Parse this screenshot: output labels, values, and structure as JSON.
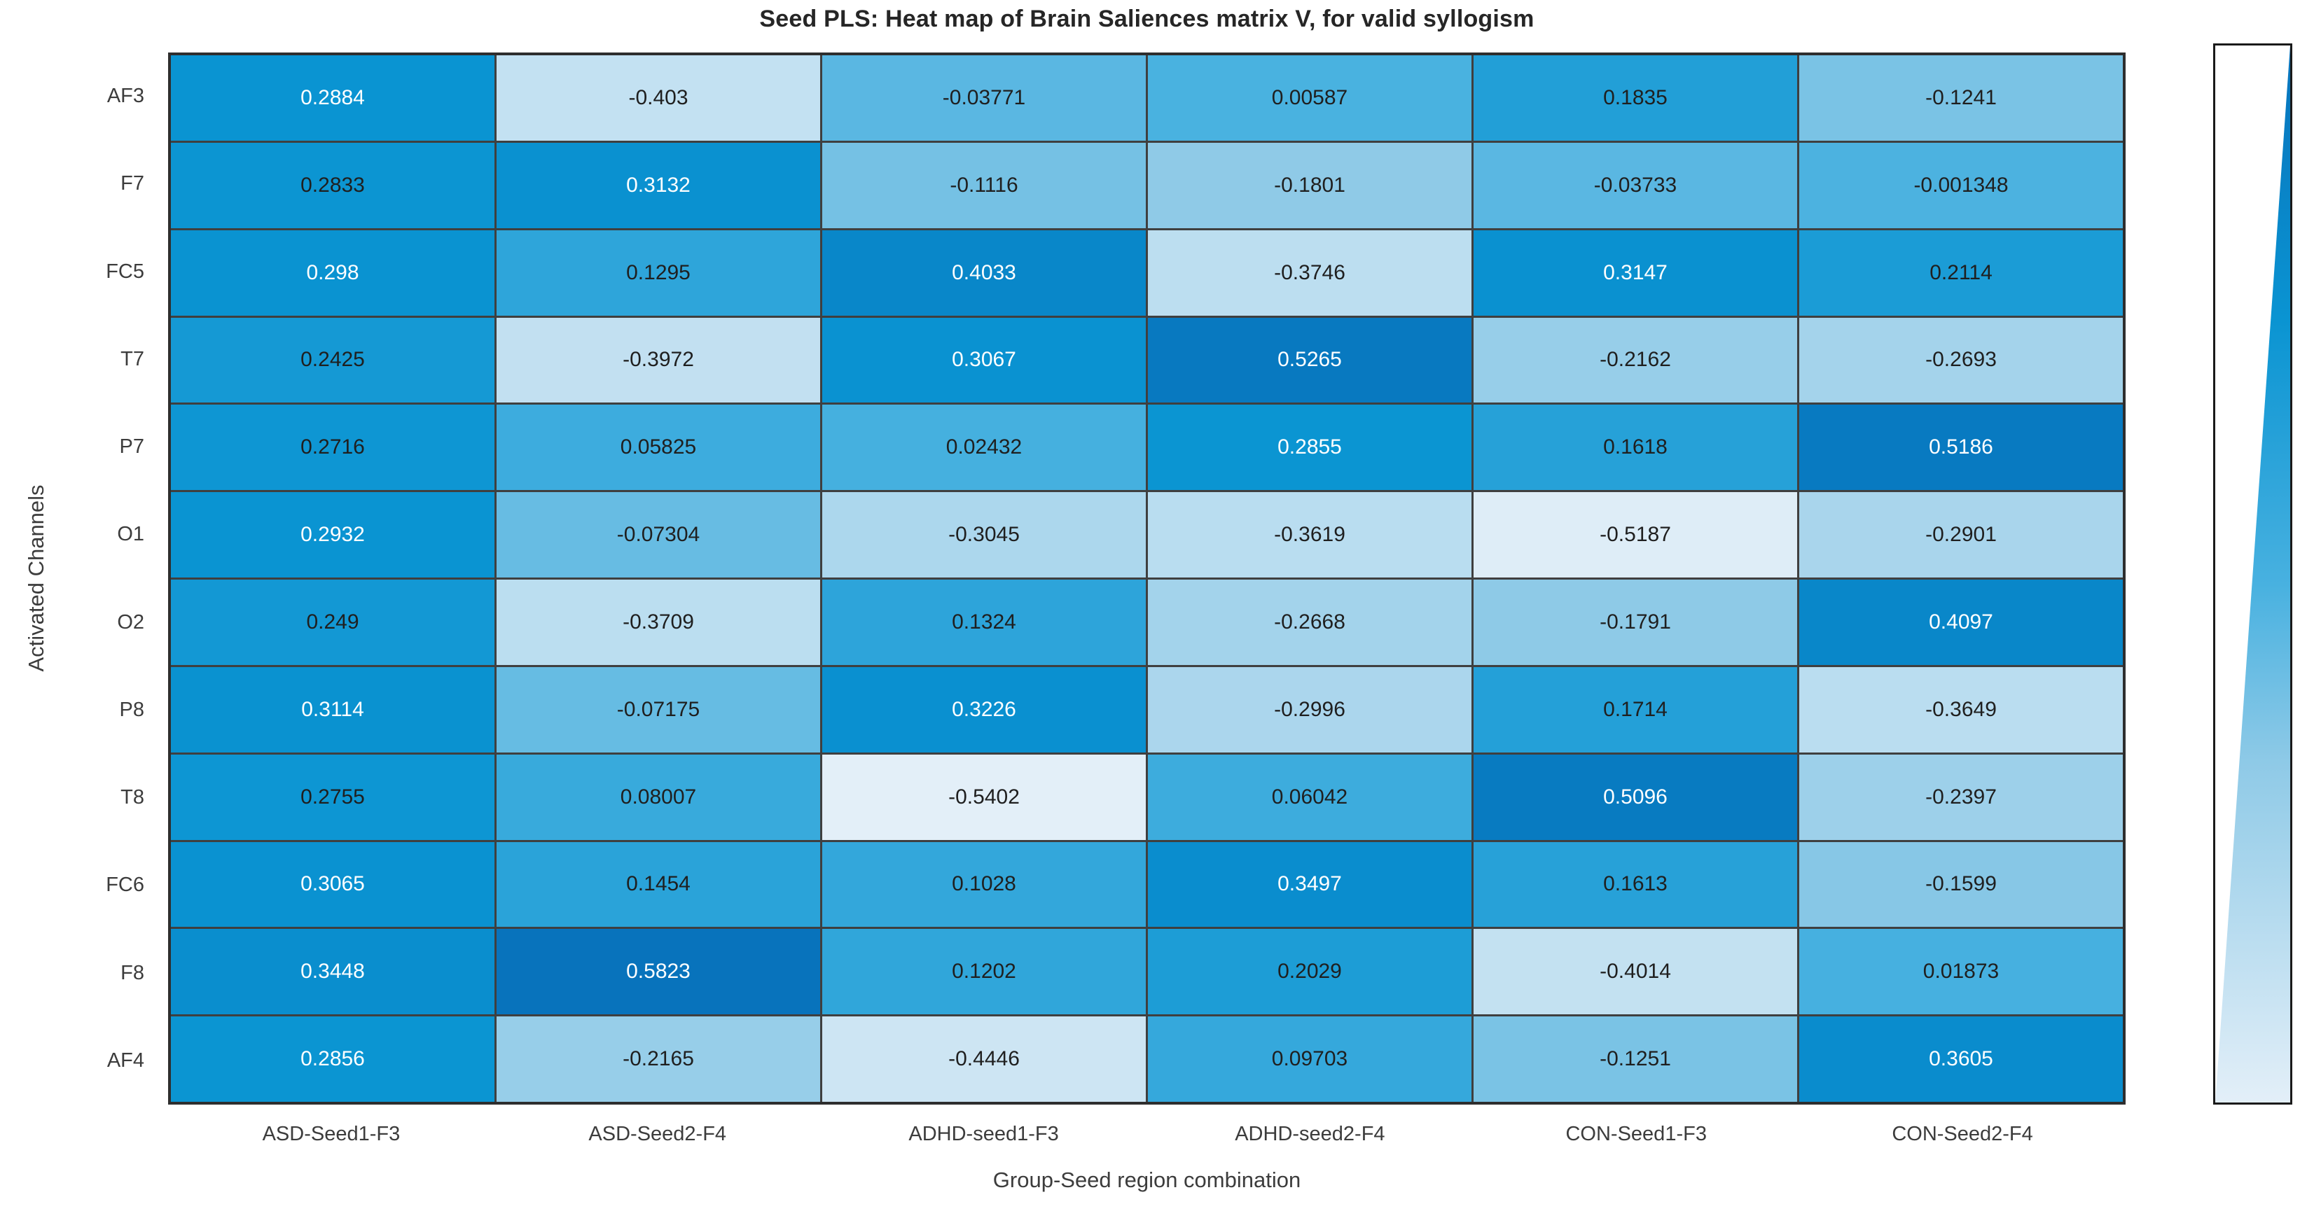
{
  "figure": {
    "background": "#ffffff"
  },
  "chart_data": {
    "type": "heatmap",
    "title": "Seed PLS: Heat map of Brain Saliences matrix V, for valid syllogism",
    "xlabel": "Group-Seed region combination",
    "ylabel": "Activated Channels",
    "rows": [
      "AF3",
      "F7",
      "FC5",
      "T7",
      "P7",
      "O1",
      "O2",
      "P8",
      "T8",
      "FC6",
      "F8",
      "AF4"
    ],
    "columns": [
      "ASD-Seed1-F3",
      "ASD-Seed2-F4",
      "ADHD-seed1-F3",
      "ADHD-seed2-F4",
      "CON-Seed1-F3",
      "CON-Seed2-F4"
    ],
    "values": [
      [
        "0.2884",
        "-0.403",
        "-0.03771",
        "0.00587",
        "0.1835",
        "-0.1241"
      ],
      [
        "0.2833",
        "0.3132",
        "-0.1116",
        "-0.1801",
        "-0.03733",
        "-0.001348"
      ],
      [
        "0.298",
        "0.1295",
        "0.4033",
        "-0.3746",
        "0.3147",
        "0.2114"
      ],
      [
        "0.2425",
        "-0.3972",
        "0.3067",
        "0.5265",
        "-0.2162",
        "-0.2693"
      ],
      [
        "0.2716",
        "0.05825",
        "0.02432",
        "0.2855",
        "0.1618",
        "0.5186"
      ],
      [
        "0.2932",
        "-0.07304",
        "-0.3045",
        "-0.3619",
        "-0.5187",
        "-0.2901"
      ],
      [
        "0.249",
        "-0.3709",
        "0.1324",
        "-0.2668",
        "-0.1791",
        "0.4097"
      ],
      [
        "0.3114",
        "-0.07175",
        "0.3226",
        "-0.2996",
        "0.1714",
        "-0.3649"
      ],
      [
        "0.2755",
        "0.08007",
        "-0.5402",
        "0.06042",
        "0.5096",
        "-0.2397"
      ],
      [
        "0.3065",
        "0.1454",
        "0.1028",
        "0.3497",
        "0.1613",
        "-0.1599"
      ],
      [
        "0.3448",
        "0.5823",
        "0.1202",
        "0.2029",
        "-0.4014",
        "0.01873"
      ],
      [
        "0.2856",
        "-0.2165",
        "-0.4446",
        "0.09703",
        "-0.1251",
        "0.3605"
      ]
    ],
    "color_limits": [
      -0.5402,
      0.5823
    ],
    "colormap_anchors": [
      {
        "t": 0,
        "color": "#e3eff8"
      },
      {
        "t": 0.32,
        "color": "#8fcae7"
      },
      {
        "t": 0.49,
        "color": "#48b1e0"
      },
      {
        "t": 0.74,
        "color": "#0a94d2"
      },
      {
        "t": 1,
        "color": "#0873bc"
      }
    ],
    "cell_text_white_threshold": 0.284,
    "cell_text_colors": {
      "on_dark": "#ffffff",
      "on_light": "#1f1f1f"
    },
    "grid_color": "#3f3f3f",
    "grid": true,
    "legend_position": "right"
  },
  "colorbar": {
    "shape": "wedge",
    "orientation": "vertical",
    "top_color": "#0873bc",
    "bottom_color": "#e3eff8",
    "fill_background": "#ffffff",
    "border_color": "#1a1a1a"
  }
}
